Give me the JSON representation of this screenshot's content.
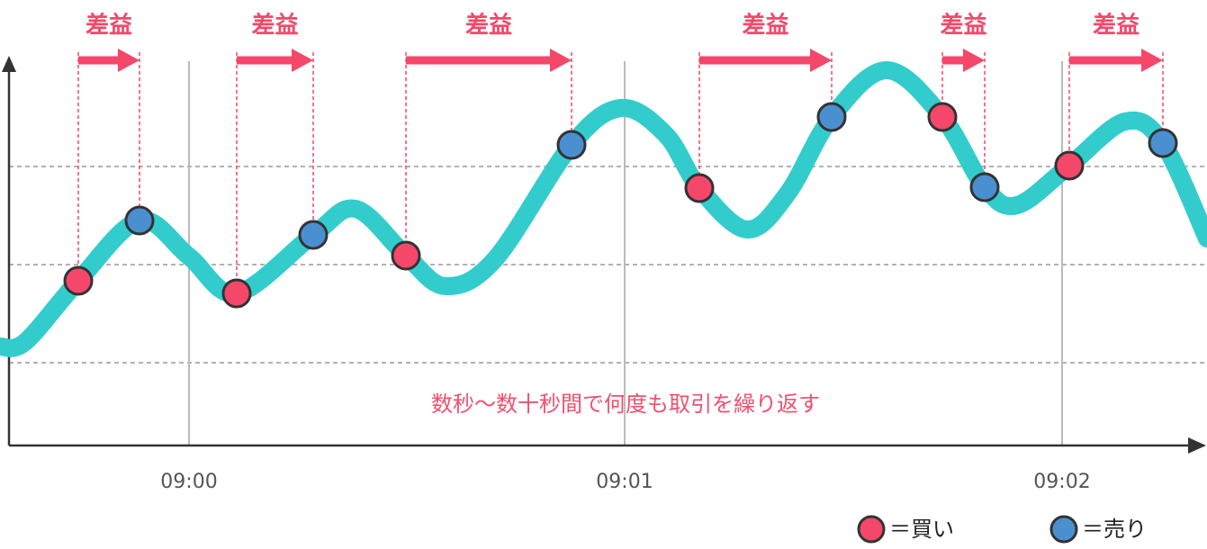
{
  "arrows": [
    {
      "label": "差益"
    },
    {
      "label": "差益"
    },
    {
      "label": "差益"
    },
    {
      "label": "差益"
    },
    {
      "label": "差益"
    },
    {
      "label": "差益"
    }
  ],
  "x_labels": [
    "09:00",
    "09:01",
    "09:02"
  ],
  "caption": "数秒～数十秒間で何度も取引を繰り返す",
  "legend": [
    {
      "label": "＝買い"
    },
    {
      "label": "＝売り"
    }
  ]
}
